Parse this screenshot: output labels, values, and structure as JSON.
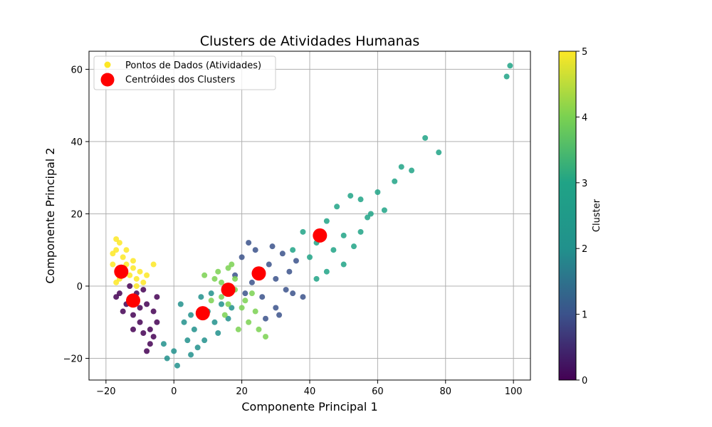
{
  "chart_data": {
    "type": "scatter",
    "title": "Clusters de Atividades Humanas",
    "xlabel": "Componente Principal 1",
    "ylabel": "Componente Principal 2",
    "xlim": [
      -25,
      105
    ],
    "ylim": [
      -26,
      65
    ],
    "x_ticks": [
      "−20",
      "0",
      "20",
      "40",
      "60",
      "80",
      "100"
    ],
    "x_tick_values": [
      -20,
      0,
      20,
      40,
      60,
      80,
      100
    ],
    "y_ticks": [
      "−20",
      "0",
      "20",
      "40",
      "60"
    ],
    "y_tick_values": [
      -20,
      0,
      20,
      40,
      60
    ],
    "grid": true,
    "legend": {
      "placement": "top-left",
      "entries": [
        "Pontos de Dados (Atividades)",
        "Centróides dos Clusters"
      ]
    },
    "colorbar": {
      "label": "Cluster",
      "ticks": [
        "0",
        "1",
        "2",
        "3",
        "4",
        "5"
      ],
      "colormap": "viridis"
    },
    "cluster_colors": [
      "#440154",
      "#3b528b",
      "#21918c",
      "#20a386",
      "#7ad151",
      "#fde725"
    ],
    "centroid_color": "#ff0000",
    "centroids": [
      {
        "cluster": 0,
        "x": -12,
        "y": -4
      },
      {
        "cluster": 1,
        "x": 25,
        "y": 3.5
      },
      {
        "cluster": 2,
        "x": 8.5,
        "y": -7.5
      },
      {
        "cluster": 3,
        "x": 43,
        "y": 14
      },
      {
        "cluster": 4,
        "x": 16,
        "y": -1
      },
      {
        "cluster": 5,
        "x": -15.5,
        "y": 4
      }
    ],
    "series": [
      {
        "cluster": 0,
        "approximate": true,
        "points": [
          [
            -16,
            -2
          ],
          [
            -14,
            -5
          ],
          [
            -12,
            -8
          ],
          [
            -10,
            -10
          ],
          [
            -9,
            -13
          ],
          [
            -7,
            -12
          ],
          [
            -8,
            -5
          ],
          [
            -11,
            -2
          ],
          [
            -13,
            0
          ],
          [
            -6,
            -7
          ],
          [
            -5,
            -10
          ],
          [
            -7,
            -16
          ],
          [
            -8,
            -18
          ],
          [
            -5,
            -3
          ],
          [
            -17,
            -3
          ],
          [
            -10,
            -6
          ],
          [
            -12,
            -12
          ],
          [
            -15,
            -7
          ],
          [
            -6,
            -14
          ],
          [
            -9,
            -1
          ]
        ]
      },
      {
        "cluster": 1,
        "approximate": true,
        "points": [
          [
            20,
            8
          ],
          [
            22,
            12
          ],
          [
            25,
            3
          ],
          [
            28,
            6
          ],
          [
            30,
            2
          ],
          [
            32,
            9
          ],
          [
            34,
            4
          ],
          [
            18,
            3
          ],
          [
            21,
            -2
          ],
          [
            26,
            -3
          ],
          [
            30,
            -6
          ],
          [
            33,
            -1
          ],
          [
            24,
            10
          ],
          [
            29,
            11
          ],
          [
            35,
            -2
          ],
          [
            27,
            -9
          ],
          [
            31,
            -8
          ],
          [
            38,
            -3
          ],
          [
            23,
            1
          ],
          [
            36,
            7
          ]
        ]
      },
      {
        "cluster": 2,
        "approximate": true,
        "points": [
          [
            2,
            -5
          ],
          [
            5,
            -8
          ],
          [
            8,
            -3
          ],
          [
            10,
            -7
          ],
          [
            12,
            -10
          ],
          [
            6,
            -12
          ],
          [
            4,
            -15
          ],
          [
            9,
            -15
          ],
          [
            14,
            -5
          ],
          [
            11,
            -2
          ],
          [
            0,
            -18
          ],
          [
            -2,
            -20
          ],
          [
            7,
            -17
          ],
          [
            3,
            -10
          ],
          [
            16,
            -9
          ],
          [
            13,
            -13
          ],
          [
            1,
            -22
          ],
          [
            -3,
            -16
          ],
          [
            5,
            -19
          ],
          [
            17,
            -6
          ]
        ]
      },
      {
        "cluster": 3,
        "approximate": true,
        "points": [
          [
            35,
            10
          ],
          [
            38,
            15
          ],
          [
            40,
            8
          ],
          [
            42,
            12
          ],
          [
            45,
            18
          ],
          [
            48,
            22
          ],
          [
            50,
            14
          ],
          [
            52,
            25
          ],
          [
            55,
            24
          ],
          [
            58,
            20
          ],
          [
            60,
            26
          ],
          [
            62,
            21
          ],
          [
            65,
            29
          ],
          [
            67,
            33
          ],
          [
            70,
            32
          ],
          [
            74,
            41
          ],
          [
            78,
            37
          ],
          [
            98,
            58
          ],
          [
            99,
            61
          ],
          [
            45,
            4
          ],
          [
            47,
            10
          ],
          [
            42,
            2
          ],
          [
            53,
            11
          ],
          [
            50,
            6
          ],
          [
            57,
            19
          ],
          [
            55,
            15
          ]
        ]
      },
      {
        "cluster": 4,
        "approximate": true,
        "points": [
          [
            12,
            2
          ],
          [
            14,
            -3
          ],
          [
            16,
            5
          ],
          [
            18,
            -1
          ],
          [
            20,
            -6
          ],
          [
            15,
            -8
          ],
          [
            22,
            -10
          ],
          [
            11,
            -4
          ],
          [
            17,
            6
          ],
          [
            13,
            4
          ],
          [
            23,
            -2
          ],
          [
            19,
            -12
          ],
          [
            21,
            -4
          ],
          [
            14,
            1
          ],
          [
            25,
            -12
          ],
          [
            27,
            -14
          ],
          [
            9,
            3
          ],
          [
            24,
            -7
          ],
          [
            18,
            2
          ],
          [
            16,
            -5
          ]
        ]
      },
      {
        "cluster": 5,
        "approximate": true,
        "points": [
          [
            -18,
            6
          ],
          [
            -17,
            10
          ],
          [
            -16,
            12
          ],
          [
            -15,
            8
          ],
          [
            -14,
            6
          ],
          [
            -13,
            3
          ],
          [
            -12,
            5
          ],
          [
            -11,
            2
          ],
          [
            -10,
            4
          ],
          [
            -9,
            1
          ],
          [
            -16,
            2
          ],
          [
            -18,
            9
          ],
          [
            -17,
            13
          ],
          [
            -14,
            10
          ],
          [
            -12,
            7
          ],
          [
            -15,
            4
          ],
          [
            -11,
            0
          ],
          [
            -8,
            3
          ],
          [
            -6,
            6
          ],
          [
            -17,
            1
          ]
        ]
      }
    ]
  }
}
